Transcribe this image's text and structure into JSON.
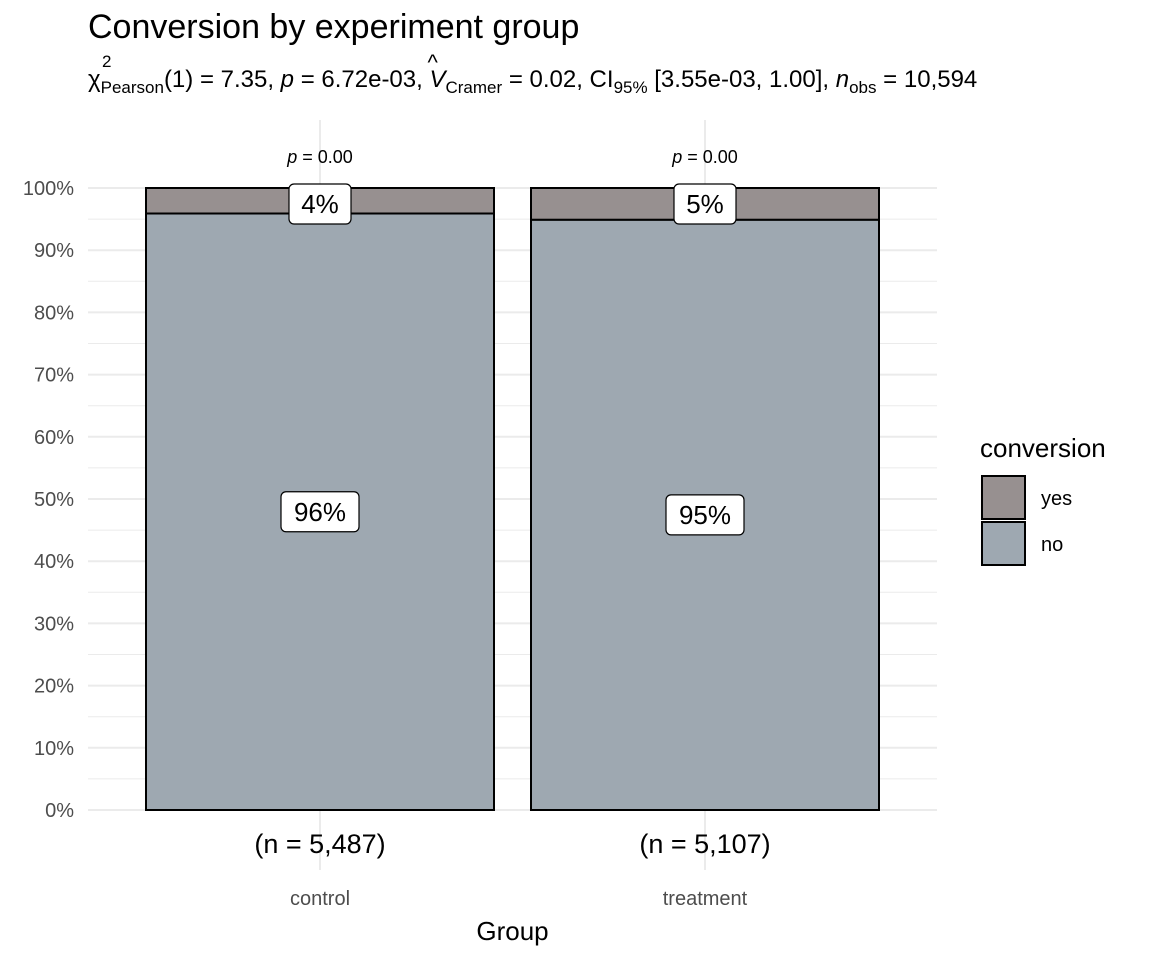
{
  "chart_data": {
    "type": "bar",
    "stacked": true,
    "percent": true,
    "title": "Conversion by experiment group",
    "subtitle": {
      "chi_symbol": "χ",
      "chi_sup": "2",
      "chi_sub": "Pearson",
      "df": "(1) = 7.35, ",
      "p_label": "p",
      "p_value": " = 6.72e-03, ",
      "v_label": "V",
      "v_sub": "Cramer",
      "v_value": " = 0.02, CI",
      "ci_sub": "95%",
      "ci_value": " [3.55e-03, 1.00], ",
      "n_label": "n",
      "n_sub": "obs",
      "n_value": " = 10,594"
    },
    "xlabel": "Group",
    "ylabel": "",
    "ylim": [
      0,
      100
    ],
    "yticks": [
      "0%",
      "10%",
      "20%",
      "30%",
      "40%",
      "50%",
      "60%",
      "70%",
      "80%",
      "90%",
      "100%"
    ],
    "categories": [
      "control",
      "treatment"
    ],
    "counts": [
      "(n = 5,487)",
      "(n = 5,107)"
    ],
    "p_labels": [
      "p = 0.00",
      "p = 0.00"
    ],
    "series": [
      {
        "name": "no",
        "values": [
          95.9,
          94.9
        ],
        "labels": [
          "96%",
          "95%"
        ],
        "color": "#9EA8B1"
      },
      {
        "name": "yes",
        "values": [
          4.1,
          5.1
        ],
        "labels": [
          "4%",
          "5%"
        ],
        "color": "#979090"
      }
    ],
    "legend": {
      "title": "conversion",
      "position": "right",
      "order": [
        "yes",
        "no"
      ]
    },
    "grid": true
  }
}
